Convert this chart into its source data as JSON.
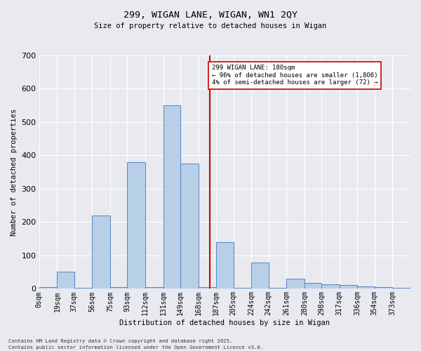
{
  "title_line1": "299, WIGAN LANE, WIGAN, WN1 2QY",
  "title_line2": "Size of property relative to detached houses in Wigan",
  "xlabel": "Distribution of detached houses by size in Wigan",
  "ylabel": "Number of detached properties",
  "bar_labels": [
    "0sqm",
    "19sqm",
    "37sqm",
    "56sqm",
    "75sqm",
    "93sqm",
    "112sqm",
    "131sqm",
    "149sqm",
    "168sqm",
    "187sqm",
    "205sqm",
    "224sqm",
    "242sqm",
    "261sqm",
    "280sqm",
    "298sqm",
    "317sqm",
    "336sqm",
    "354sqm",
    "373sqm"
  ],
  "bar_heights": [
    6,
    51,
    3,
    220,
    5,
    380,
    5,
    550,
    375,
    5,
    140,
    3,
    78,
    3,
    30,
    18,
    14,
    11,
    8,
    6,
    2
  ],
  "bin_edges": [
    0,
    19,
    37,
    56,
    75,
    93,
    112,
    131,
    149,
    168,
    187,
    205,
    224,
    242,
    261,
    280,
    298,
    317,
    336,
    354,
    373,
    392
  ],
  "bar_color": "#b8cfe8",
  "bar_edge_color": "#5585c5",
  "vline_x": 180,
  "vline_color": "#cc0000",
  "annotation_text": "299 WIGAN LANE: 180sqm\n← 96% of detached houses are smaller (1,806)\n4% of semi-detached houses are larger (72) →",
  "annotation_box_color": "white",
  "annotation_box_edge": "#cc0000",
  "ylim": [
    0,
    700
  ],
  "yticks": [
    0,
    100,
    200,
    300,
    400,
    500,
    600,
    700
  ],
  "bg_color": "#e8eaf0",
  "grid_color": "white",
  "footer_line1": "Contains HM Land Registry data © Crown copyright and database right 2025.",
  "footer_line2": "Contains public sector information licensed under the Open Government Licence v3.0."
}
